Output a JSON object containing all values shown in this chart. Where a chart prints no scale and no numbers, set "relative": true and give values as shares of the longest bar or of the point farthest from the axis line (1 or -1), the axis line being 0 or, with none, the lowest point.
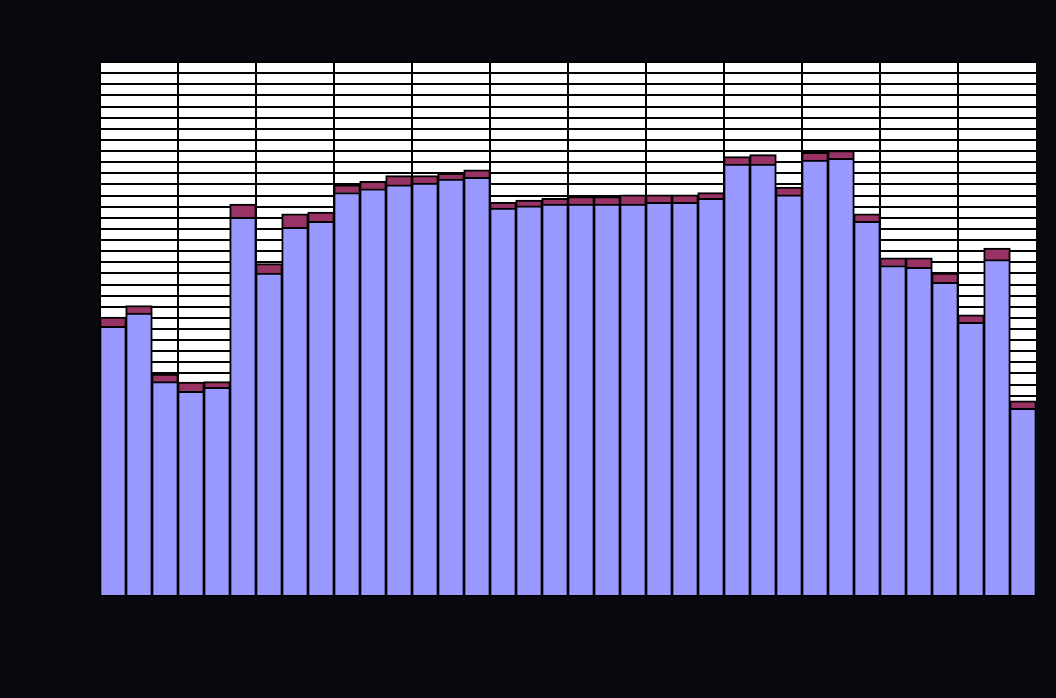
{
  "chart_data": {
    "type": "bar",
    "stacked": true,
    "relative": true,
    "grid": true,
    "legend": false,
    "categories": [
      null,
      null,
      null,
      null,
      null,
      null,
      null,
      null,
      null,
      null,
      null,
      null,
      null,
      null,
      null,
      null,
      null,
      null,
      null,
      null,
      null,
      null,
      null,
      null,
      null,
      null,
      null,
      null,
      null,
      null,
      null,
      null,
      null,
      null,
      null,
      null
    ],
    "series": [
      {
        "color": "#9999ff",
        "values": [
          0.605,
          0.635,
          0.481,
          0.459,
          0.468,
          0.85,
          0.725,
          0.828,
          0.841,
          0.906,
          0.914,
          0.923,
          0.927,
          0.936,
          0.94,
          0.871,
          0.876,
          0.88,
          0.88,
          0.88,
          0.88,
          0.884,
          0.884,
          0.893,
          0.97,
          0.97,
          0.901,
          0.979,
          0.983,
          0.841,
          0.742,
          0.738,
          0.704,
          0.614,
          0.755,
          0.421
        ]
      },
      {
        "color": "#993366",
        "values": [
          0.021,
          0.017,
          0.017,
          0.021,
          0.013,
          0.03,
          0.021,
          0.03,
          0.021,
          0.017,
          0.017,
          0.021,
          0.017,
          0.013,
          0.017,
          0.013,
          0.013,
          0.013,
          0.017,
          0.017,
          0.021,
          0.017,
          0.017,
          0.013,
          0.017,
          0.021,
          0.017,
          0.017,
          0.017,
          0.017,
          0.017,
          0.021,
          0.021,
          0.017,
          0.026,
          0.017
        ]
      }
    ]
  }
}
